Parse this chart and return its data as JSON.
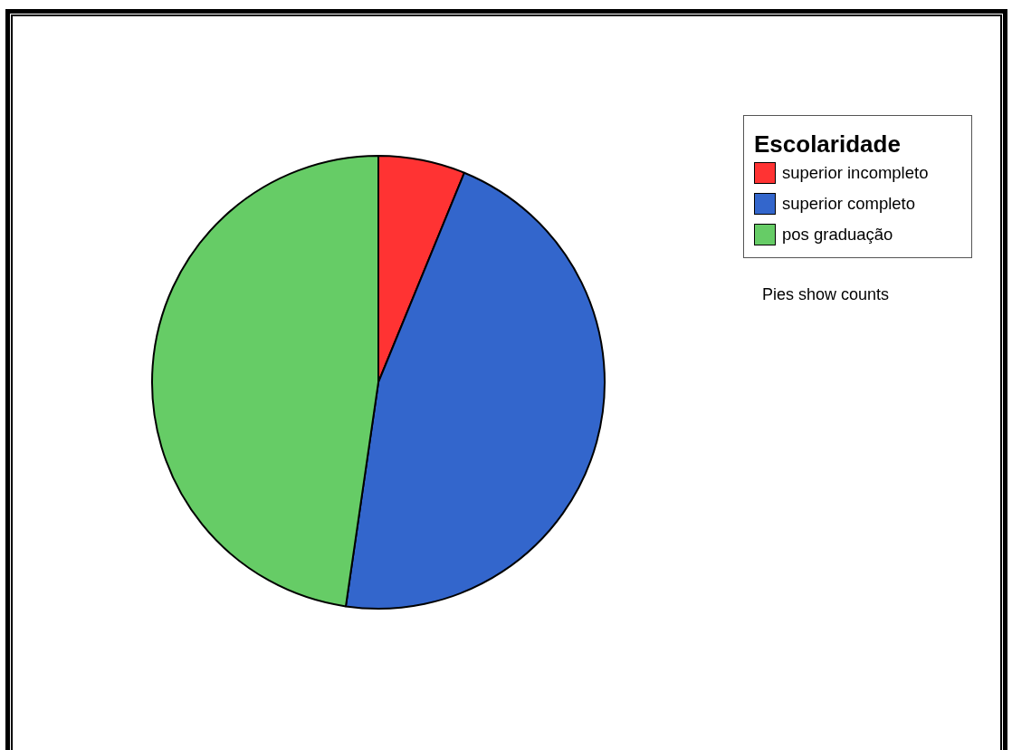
{
  "chart_data": {
    "type": "pie",
    "legend_title": "Escolaridade",
    "legend": "top right",
    "categories": [
      "superior incompleto",
      "superior completo",
      "pos graduação"
    ],
    "values": [
      6.2,
      46.1,
      47.7
    ],
    "colors": [
      "#ff3333",
      "#3366cc",
      "#66cc66"
    ],
    "annotations": [
      "Pies show counts"
    ]
  }
}
